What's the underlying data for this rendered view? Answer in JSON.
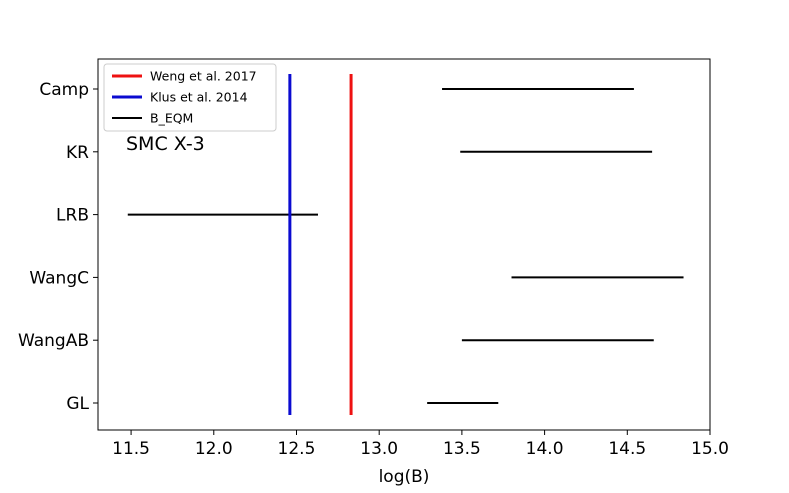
{
  "chart_data": {
    "type": "interval",
    "annotation": "SMC X-3",
    "xlabel": "log(B)",
    "ylabel": "",
    "xlim": [
      11.3,
      15.0
    ],
    "xticks": [
      11.5,
      12.0,
      12.5,
      13.0,
      13.5,
      14.0,
      14.5,
      15.0
    ],
    "xtick_labels": [
      "11.5",
      "12.0",
      "12.5",
      "13.0",
      "13.5",
      "14.0",
      "14.5",
      "15.0"
    ],
    "categories": [
      "GL",
      "WangAB",
      "WangC",
      "LRB",
      "KR",
      "Camp"
    ],
    "intervals": [
      {
        "label": "GL",
        "low": 13.29,
        "high": 13.72
      },
      {
        "label": "WangAB",
        "low": 13.5,
        "high": 14.66
      },
      {
        "label": "WangC",
        "low": 13.8,
        "high": 14.84
      },
      {
        "label": "LRB",
        "low": 11.48,
        "high": 12.63
      },
      {
        "label": "KR",
        "low": 13.49,
        "high": 14.65
      },
      {
        "label": "Camp",
        "low": 13.38,
        "high": 14.54
      }
    ],
    "vlines": [
      {
        "name": "Weng et al. 2017",
        "x": 12.83,
        "color": "#ee1111"
      },
      {
        "name": "Klus et al. 2014",
        "x": 12.46,
        "color": "#0b0bd0"
      }
    ],
    "legend": {
      "placement": "top-left",
      "entries": [
        {
          "label": "Weng et al. 2017",
          "color": "#ee1111"
        },
        {
          "label": "Klus et al. 2014",
          "color": "#0b0bd0"
        },
        {
          "label": "B_EQM",
          "color": "#000000"
        }
      ]
    },
    "grid": false
  }
}
